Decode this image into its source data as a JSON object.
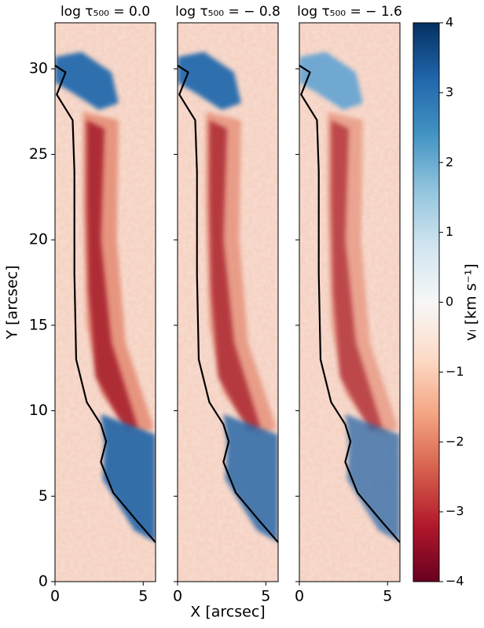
{
  "chart_data": [
    {
      "type": "heatmap",
      "title": "log τ₅₀₀ = 0.0",
      "ylabel": "Y [arcsec]",
      "xlim": [
        0,
        5.7
      ],
      "ylim": [
        0,
        32.7
      ],
      "xticks": [
        0,
        5
      ],
      "yticks": [
        0,
        5,
        10,
        15,
        20,
        25,
        30
      ]
    },
    {
      "type": "heatmap",
      "title": "log τ₅₀₀ = − 0.8",
      "xlabel": "X [arcsec]",
      "xlim": [
        0,
        5.7
      ],
      "ylim": [
        0,
        32.7
      ],
      "xticks": [
        0,
        5
      ]
    },
    {
      "type": "heatmap",
      "title": "log τ₅₀₀ = − 1.6",
      "xlim": [
        0,
        5.7
      ],
      "ylim": [
        0,
        32.7
      ],
      "xticks": [
        0,
        5
      ]
    },
    {
      "type": "colorbar",
      "label": "vₗ [km s⁻¹]",
      "ylim": [
        -4,
        4
      ],
      "yticks": [
        {
          "value": -4,
          "label": "−4"
        },
        {
          "value": -3,
          "label": "−3"
        },
        {
          "value": -2,
          "label": "−2"
        },
        {
          "value": -1,
          "label": "−1"
        },
        0,
        1,
        2,
        3,
        4
      ],
      "colors": [
        "#67001f",
        "#b2182b",
        "#d6604d",
        "#f4a582",
        "#fddbc7",
        "#f7f7f7",
        "#d1e5f0",
        "#92c5de",
        "#4393c3",
        "#2166ac",
        "#053061"
      ]
    }
  ]
}
